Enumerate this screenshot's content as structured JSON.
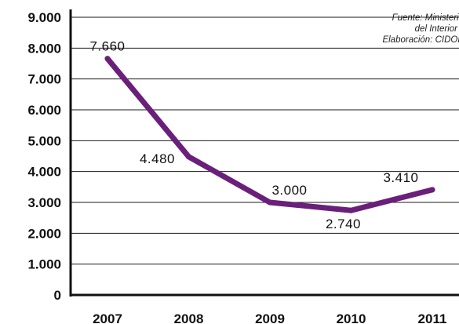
{
  "chart_data": {
    "type": "line",
    "categories": [
      "2007",
      "2008",
      "2009",
      "2010",
      "2011"
    ],
    "values": [
      7660,
      4480,
      3000,
      2740,
      3410
    ],
    "data_labels": [
      "7.660",
      "4.480",
      "3.000",
      "2.740",
      "3.410"
    ],
    "y_ticks": [
      0,
      1000,
      2000,
      3000,
      4000,
      5000,
      6000,
      7000,
      8000,
      9000
    ],
    "y_tick_labels": [
      "0",
      "1.000",
      "2.000",
      "3.000",
      "4.000",
      "5.000",
      "6.000",
      "7.000",
      "8.000",
      "9.000"
    ],
    "ylim": [
      0,
      9000
    ],
    "grid": true,
    "line_color": "#6a1f7a",
    "source_lines": [
      "Fuente: Ministerio",
      "del Interior",
      "Elaboración: CIDOB"
    ]
  }
}
